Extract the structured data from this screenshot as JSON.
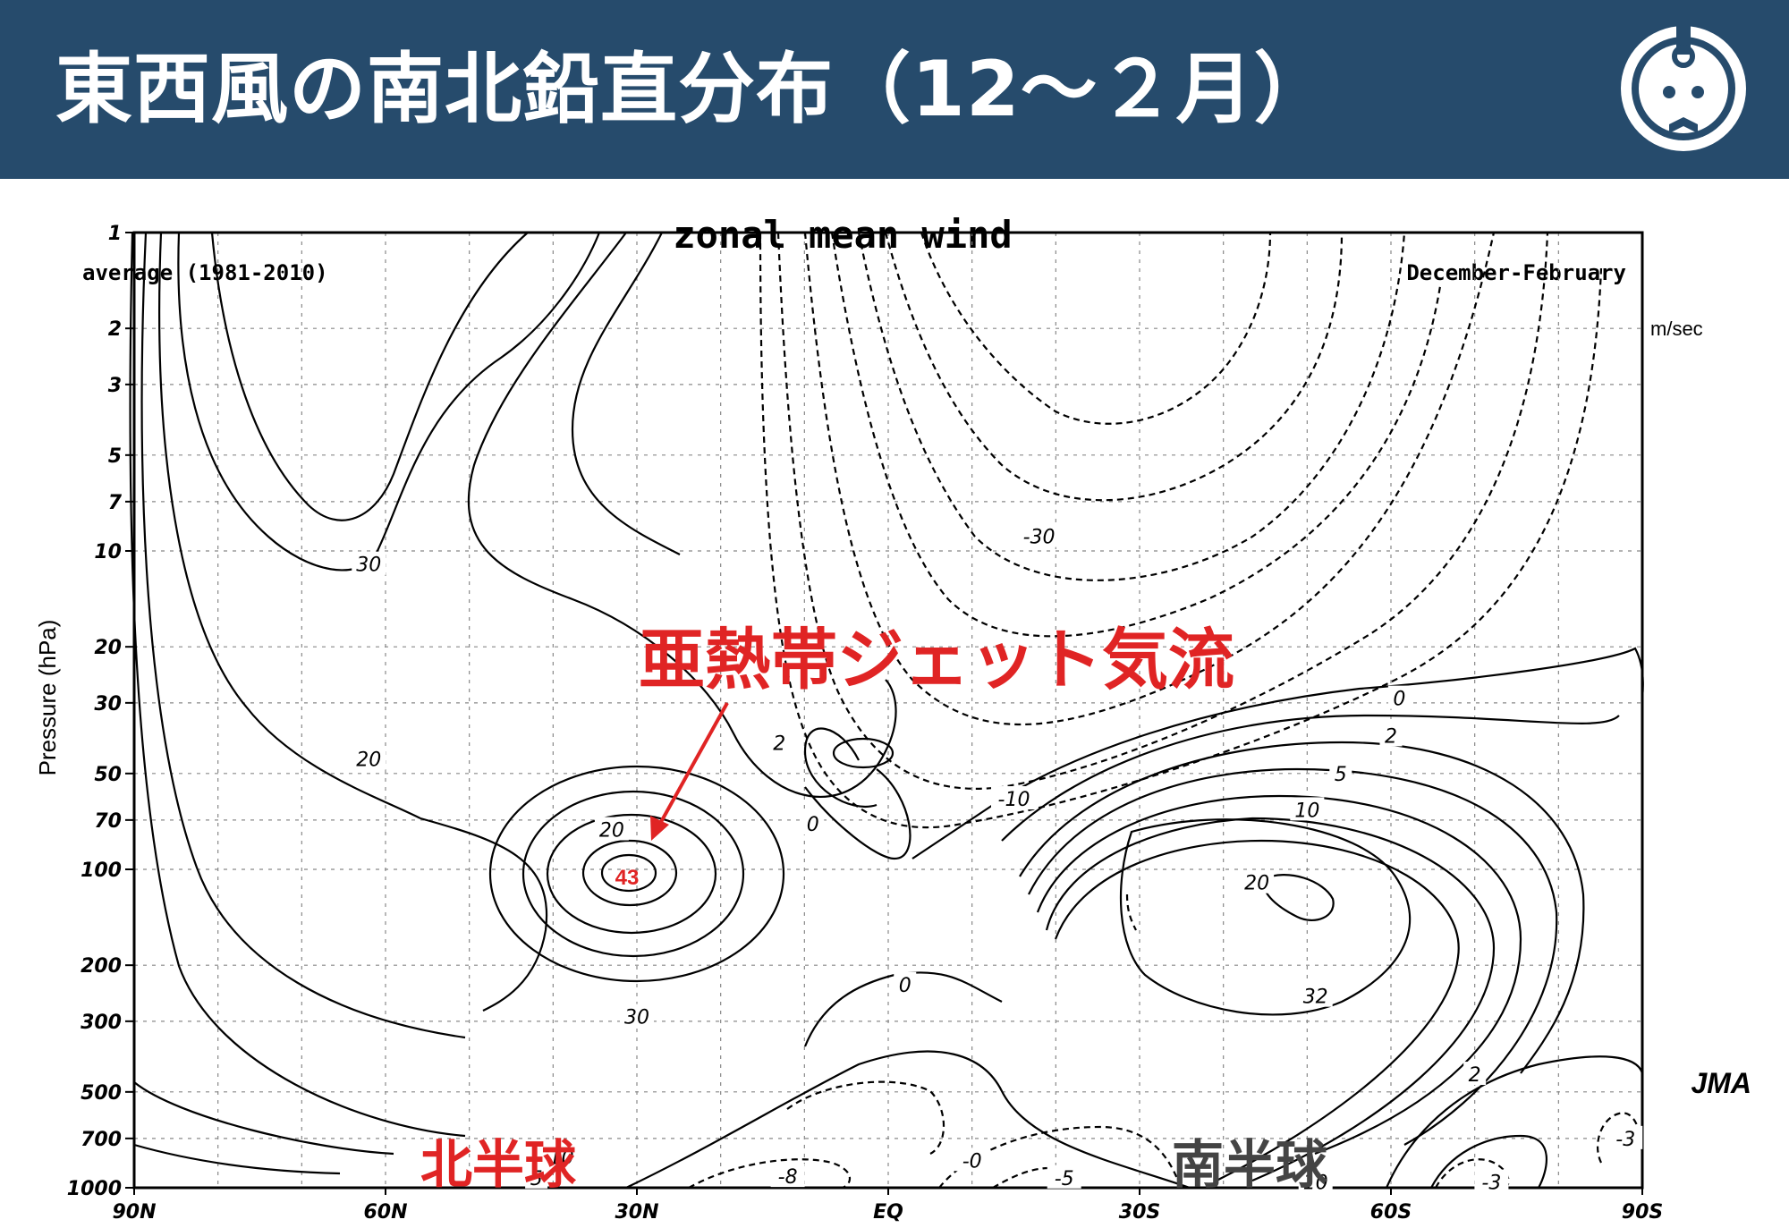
{
  "header": {
    "title": "東西風の南北鉛直分布（12～２月）",
    "background_color": "#264b6c",
    "logo_icon": "weather-mascot-icon"
  },
  "annotations": {
    "jet_label": "亜熱帯ジェット気流",
    "jet_color": "#e02424",
    "northern_hemisphere": "北半球",
    "northern_color": "#e02424",
    "southern_hemisphere": "南半球",
    "southern_color": "#444444",
    "max_value_label": "43",
    "credit": "JMA"
  },
  "chart_data": {
    "type": "contour",
    "title": "zonal mean wind",
    "subtitle_left": "average (1981-2010)",
    "subtitle_right": "December-February",
    "unit": "m/sec",
    "ylabel": "Pressure (hPa)",
    "y_scale": "log",
    "y_range": [
      1000,
      1
    ],
    "y_ticks": [
      "1",
      "2",
      "3",
      "5",
      "7",
      "10",
      "20",
      "30",
      "50",
      "70",
      "100",
      "200",
      "300",
      "500",
      "700",
      "1000"
    ],
    "x_range": [
      "90N",
      "90S"
    ],
    "x_ticks": [
      "90N",
      "60N",
      "30N",
      "EQ",
      "30S",
      "60S",
      "90S"
    ],
    "grid": true,
    "line_styles": {
      "positive": "solid",
      "negative": "dashed"
    },
    "contour_labels": [
      {
        "value": "30",
        "lat": 62,
        "p": 11
      },
      {
        "value": "20",
        "lat": 62,
        "p": 45
      },
      {
        "value": "20",
        "lat": 33,
        "p": 75
      },
      {
        "value": "30",
        "lat": 30,
        "p": 290
      },
      {
        "value": "10",
        "lat": 39,
        "p": 800
      },
      {
        "value": "5",
        "lat": 42,
        "p": 930
      },
      {
        "value": "2",
        "lat": 13,
        "p": 40
      },
      {
        "value": "0",
        "lat": 9,
        "p": 72
      },
      {
        "value": "-30",
        "lat": -18,
        "p": 9
      },
      {
        "value": "-10",
        "lat": -15,
        "p": 60
      },
      {
        "value": "0",
        "lat": -2,
        "p": 230
      },
      {
        "value": "-0",
        "lat": -10,
        "p": 820
      },
      {
        "value": "-5",
        "lat": -21,
        "p": 930
      },
      {
        "value": "-8",
        "lat": 12,
        "p": 920
      },
      {
        "value": "0",
        "lat": -61,
        "p": 29
      },
      {
        "value": "2",
        "lat": -60,
        "p": 38
      },
      {
        "value": "5",
        "lat": -54,
        "p": 50
      },
      {
        "value": "10",
        "lat": -50,
        "p": 65
      },
      {
        "value": "20",
        "lat": -44,
        "p": 110
      },
      {
        "value": "32",
        "lat": -51,
        "p": 250
      },
      {
        "value": "2",
        "lat": -70,
        "p": 440
      },
      {
        "value": "10",
        "lat": -51,
        "p": 960
      },
      {
        "value": "-3",
        "lat": -72,
        "p": 960
      },
      {
        "value": "-3",
        "lat": -88,
        "p": 700
      }
    ],
    "features": [
      {
        "name": "northern subtropical jet core",
        "lat": 30,
        "p": 200,
        "max": 43
      },
      {
        "name": "southern subtropical jet core",
        "lat": -51,
        "p": 250,
        "max": 32
      }
    ]
  }
}
